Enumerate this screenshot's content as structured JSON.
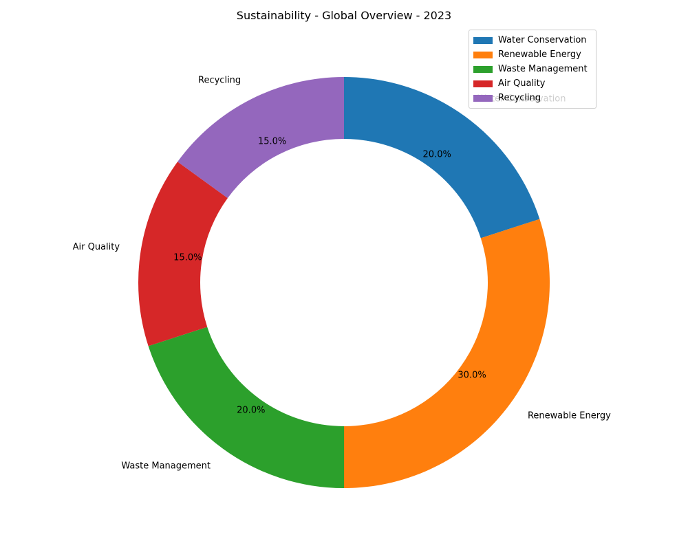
{
  "chart_data": {
    "type": "pie",
    "variant": "donut",
    "title": "Sustainability - Global Overview - 2023",
    "categories": [
      "Water Conservation",
      "Renewable Energy",
      "Waste Management",
      "Air Quality",
      "Recycling"
    ],
    "values": [
      20.0,
      30.0,
      20.0,
      15.0,
      15.0
    ],
    "value_labels": [
      "20.0%",
      "30.0%",
      "20.0%",
      "15.0%",
      "15.0%"
    ],
    "colors": [
      "#1f77b4",
      "#ff7f0e",
      "#2ca02c",
      "#d62728",
      "#9467bd"
    ],
    "start_angle": "top",
    "direction": "clockwise",
    "legend": {
      "placement": "top-right",
      "entries": [
        "Water Conservation",
        "Renewable Energy",
        "Waste Management",
        "Air Quality",
        "Recycling"
      ]
    }
  }
}
